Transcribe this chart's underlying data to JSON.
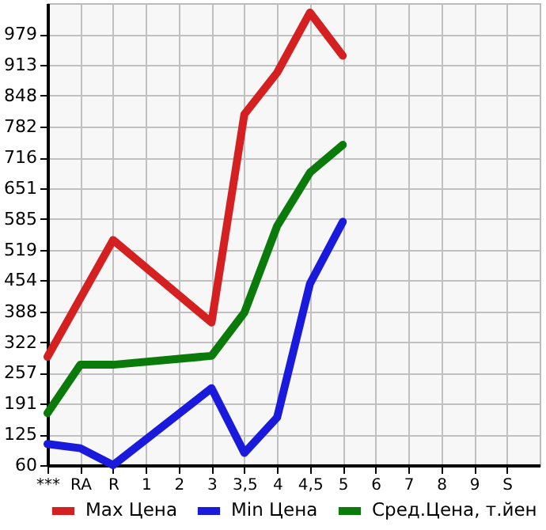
{
  "chart_data": {
    "type": "line",
    "categories": [
      "***",
      "RA",
      "R",
      "1",
      "2",
      "3",
      "3,5",
      "4",
      "4,5",
      "5",
      "6",
      "7",
      "8",
      "9",
      "S"
    ],
    "series": [
      {
        "name": "Max Цена",
        "color": "#d42020",
        "values": [
          291,
          null,
          540,
          null,
          null,
          364,
          808,
          897,
          1025,
          933,
          null,
          null,
          null,
          null,
          null
        ]
      },
      {
        "name": "Min Цена",
        "color": "#1a1adc",
        "values": [
          105,
          96,
          60,
          null,
          null,
          224,
          86,
          162,
          447,
          579,
          null,
          null,
          null,
          null,
          null
        ]
      },
      {
        "name": "Сред.Цена, т.йен",
        "color": "#0a7a0a",
        "values": [
          171,
          274,
          274,
          null,
          null,
          293,
          385,
          570,
          684,
          743,
          null,
          null,
          null,
          null,
          null
        ]
      }
    ],
    "ylim": [
      60,
      1045
    ],
    "yticks": [
      60,
      125,
      191,
      257,
      322,
      388,
      454,
      519,
      585,
      651,
      716,
      782,
      848,
      913,
      979
    ],
    "grid": true,
    "legend": "bottom",
    "marker": "none",
    "line_style": "solid"
  }
}
